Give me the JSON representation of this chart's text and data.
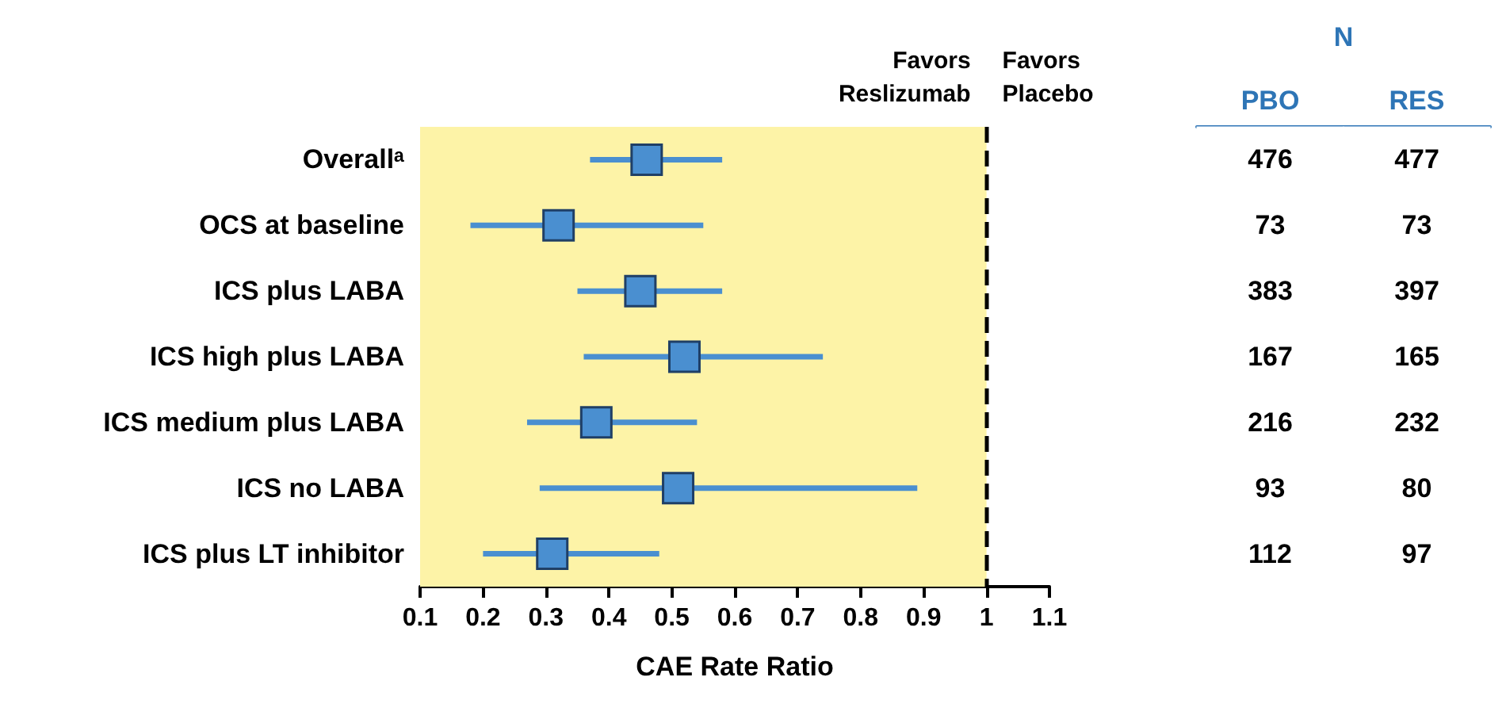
{
  "chart_data": [
    {
      "type": "scatter",
      "orientation": "horizontal",
      "xlabel": "CAE Rate Ratio",
      "categories": [
        "Overallᵃ",
        "OCS at baseline",
        "ICS plus LABA",
        "ICS high plus LABA",
        "ICS medium plus LABA",
        "ICS no LABA",
        "ICS plus LT inhibitor"
      ],
      "values": [
        0.46,
        0.32,
        0.45,
        0.52,
        0.38,
        0.51,
        0.31
      ],
      "errors": [
        [
          0.37,
          0.58
        ],
        [
          0.18,
          0.55
        ],
        [
          0.35,
          0.58
        ],
        [
          0.36,
          0.74
        ],
        [
          0.27,
          0.54
        ],
        [
          0.29,
          0.89
        ],
        [
          0.2,
          0.48
        ]
      ],
      "color": "#4a8fd0",
      "marker": "square",
      "xlim": [
        0.1,
        1.1
      ],
      "xticks": [
        0.1,
        0.2,
        0.3,
        0.4,
        0.5,
        0.6,
        0.7,
        0.8,
        0.9,
        1,
        1.1
      ],
      "bands": [
        {
          "axis": "x",
          "from": 0.1,
          "to": 1,
          "color": "#fdf3a7"
        }
      ],
      "ref_lines": [
        {
          "axis": "x",
          "value": 1,
          "color": "#000000",
          "line_style": "dashed"
        }
      ],
      "annotations": [
        "Favors\nReslizumab",
        "Favors\nPlacebo"
      ],
      "grid": false
    },
    {
      "type": "heatmap",
      "title": "N",
      "categories": [
        "PBO",
        "RES"
      ],
      "y_categories": [
        null,
        null,
        null,
        null,
        null,
        null,
        null
      ],
      "cells": [
        [
          476,
          477
        ],
        [
          73,
          73
        ],
        [
          383,
          397
        ],
        [
          167,
          165
        ],
        [
          216,
          232
        ],
        [
          93,
          80
        ],
        [
          112,
          97
        ]
      ],
      "color": "#2e75b6",
      "data_labels": true
    }
  ]
}
